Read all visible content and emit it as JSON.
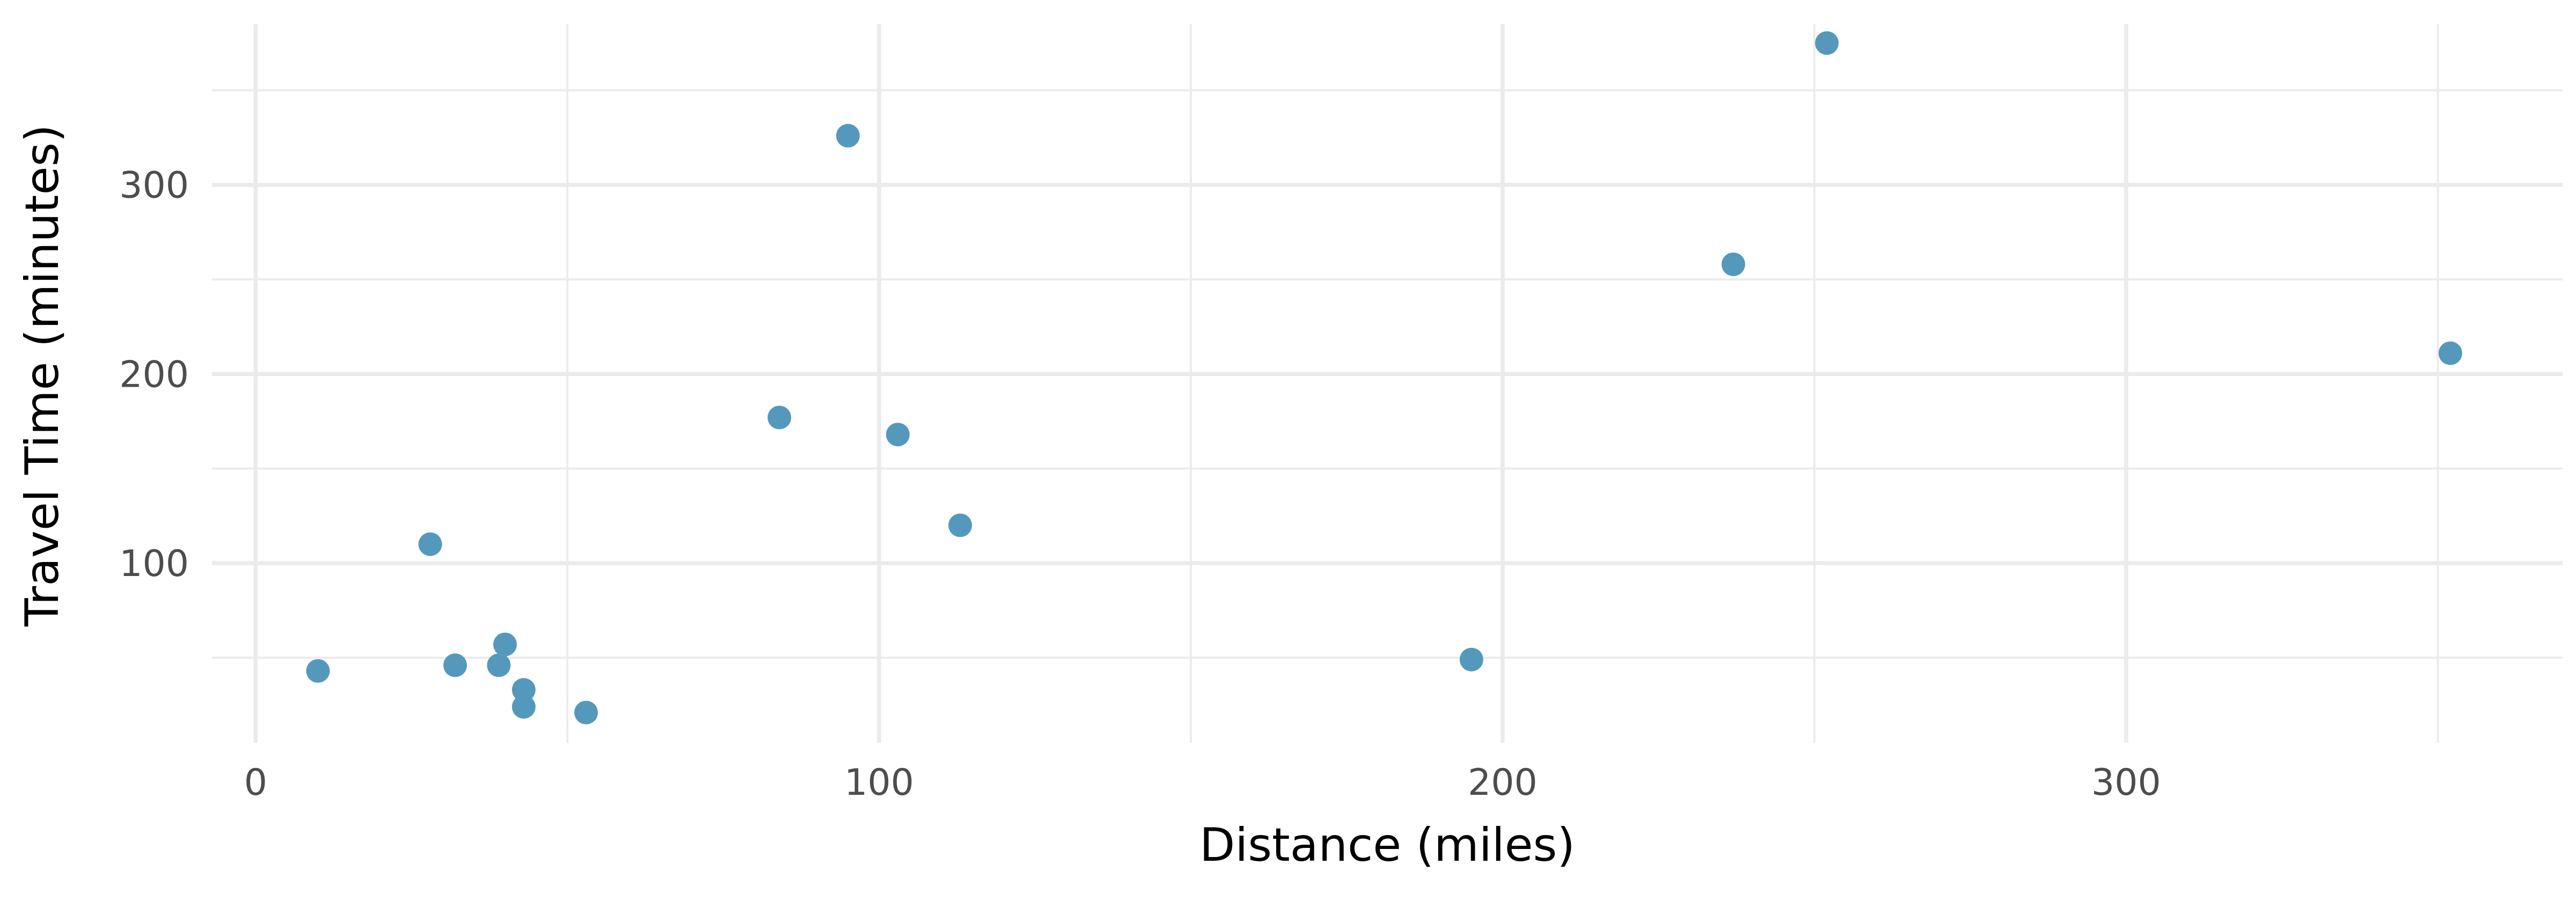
{
  "chart_data": {
    "type": "scatter",
    "title": "",
    "xlabel": "Distance (miles)",
    "ylabel": "Travel Time (minutes)",
    "xlim": [
      -7,
      370
    ],
    "ylim": [
      5,
      385
    ],
    "x_ticks": [
      0,
      100,
      200,
      300
    ],
    "x_tick_labels": [
      "0",
      "100",
      "200",
      "300"
    ],
    "x_minor_ticks": [
      50,
      150,
      250,
      350
    ],
    "y_ticks": [
      100,
      200,
      300
    ],
    "y_tick_labels": [
      "100",
      "200",
      "300"
    ],
    "y_minor_ticks": [
      50,
      150,
      250,
      350
    ],
    "grid": true,
    "legend": "none",
    "point_color": "#5499bb",
    "series": [
      {
        "points": [
          {
            "x": 10,
            "y": 43
          },
          {
            "x": 28,
            "y": 110
          },
          {
            "x": 32,
            "y": 46
          },
          {
            "x": 39,
            "y": 46
          },
          {
            "x": 40,
            "y": 57
          },
          {
            "x": 43,
            "y": 33
          },
          {
            "x": 43,
            "y": 24
          },
          {
            "x": 53,
            "y": 21
          },
          {
            "x": 84,
            "y": 177
          },
          {
            "x": 95,
            "y": 326
          },
          {
            "x": 103,
            "y": 168
          },
          {
            "x": 113,
            "y": 120
          },
          {
            "x": 195,
            "y": 49
          },
          {
            "x": 237,
            "y": 258
          },
          {
            "x": 252,
            "y": 375
          },
          {
            "x": 352,
            "y": 211
          }
        ]
      }
    ]
  }
}
